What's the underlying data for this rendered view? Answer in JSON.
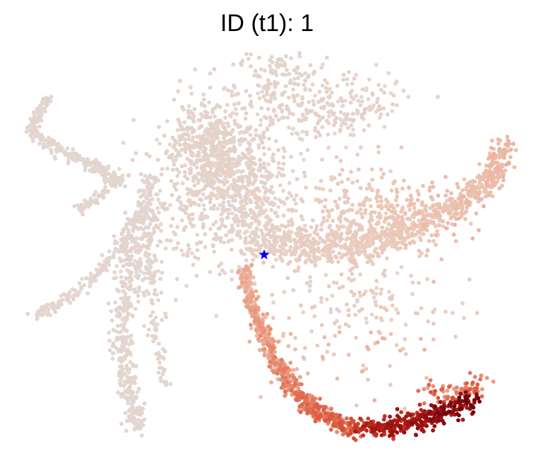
{
  "chart_data": {
    "type": "scatter",
    "title": "ID (t1): 1",
    "xlabel": "",
    "ylabel": "",
    "axes_visible": false,
    "grid": false,
    "legend": "none",
    "colormap": [
      "#e0dbd8",
      "#ecc7b7",
      "#ea9a7f",
      "#dc5a3f",
      "#b01c17",
      "#67000d"
    ],
    "marker_color": "#0000ee",
    "marker_symbol": "star"
  }
}
